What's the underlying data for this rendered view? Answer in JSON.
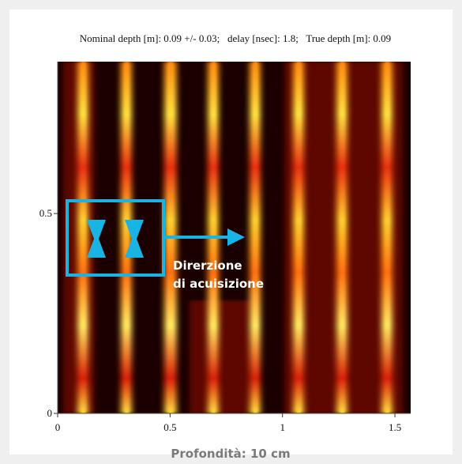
{
  "header": {
    "title": "Nominal depth [m]: 0.09 +/- 0.03;   delay [nsec]: 1.8;   True depth [m]: 0.09"
  },
  "axes": {
    "xlim": [
      0,
      1.57
    ],
    "ylim": [
      0,
      0.88
    ],
    "xticks": [
      0,
      0.5,
      1,
      1.5
    ],
    "yticks": [
      0,
      0.5
    ]
  },
  "annotation": {
    "lines": [
      "Direrzione",
      "di acuisizione"
    ]
  },
  "caption": "Profondità: 10 cm"
}
